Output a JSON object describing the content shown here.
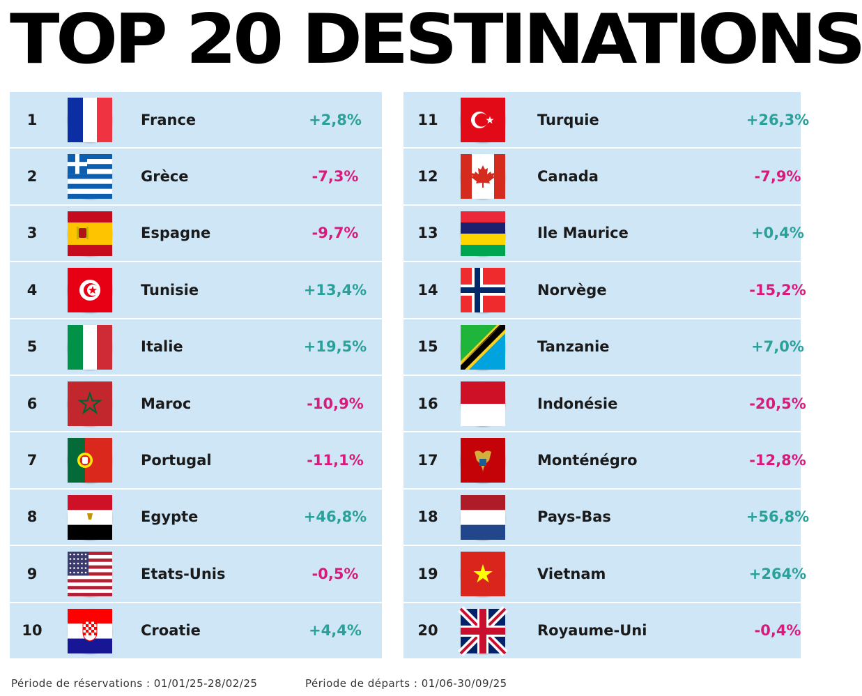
{
  "title": "TOP 20 DESTINATIONS",
  "colors": {
    "positive": "#2aa198",
    "negative": "#d81b7a",
    "row_bg": "#cfe6f7"
  },
  "chart_data": {
    "type": "table",
    "columns": [
      "rank",
      "country",
      "change"
    ],
    "rows": [
      {
        "rank": "1",
        "country": "France",
        "change": "+2,8%",
        "value": 2.8,
        "flag": "flag-france"
      },
      {
        "rank": "2",
        "country": "Grèce",
        "change": "-7,3%",
        "value": -7.3,
        "flag": "flag-greece"
      },
      {
        "rank": "3",
        "country": "Espagne",
        "change": "-9,7%",
        "value": -9.7,
        "flag": "flag-spain"
      },
      {
        "rank": "4",
        "country": "Tunisie",
        "change": "+13,4%",
        "value": 13.4,
        "flag": "flag-tunisia"
      },
      {
        "rank": "5",
        "country": "Italie",
        "change": "+19,5%",
        "value": 19.5,
        "flag": "flag-italy"
      },
      {
        "rank": "6",
        "country": "Maroc",
        "change": "-10,9%",
        "value": -10.9,
        "flag": "flag-morocco"
      },
      {
        "rank": "7",
        "country": "Portugal",
        "change": "-11,1%",
        "value": -11.1,
        "flag": "flag-portugal"
      },
      {
        "rank": "8",
        "country": "Egypte",
        "change": "+46,8%",
        "value": 46.8,
        "flag": "flag-egypt"
      },
      {
        "rank": "9",
        "country": "Etats-Unis",
        "change": "-0,5%",
        "value": -0.5,
        "flag": "flag-usa"
      },
      {
        "rank": "10",
        "country": "Croatie",
        "change": "+4,4%",
        "value": 4.4,
        "flag": "flag-croatia"
      },
      {
        "rank": "11",
        "country": "Turquie",
        "change": "+26,3%",
        "value": 26.3,
        "flag": "flag-turkey"
      },
      {
        "rank": "12",
        "country": "Canada",
        "change": "-7,9%",
        "value": -7.9,
        "flag": "flag-canada"
      },
      {
        "rank": "13",
        "country": "Ile Maurice",
        "change": "+0,4%",
        "value": 0.4,
        "flag": "flag-mauritius"
      },
      {
        "rank": "14",
        "country": "Norvège",
        "change": "-15,2%",
        "value": -15.2,
        "flag": "flag-norway"
      },
      {
        "rank": "15",
        "country": "Tanzanie",
        "change": "+7,0%",
        "value": 7.0,
        "flag": "flag-tanzania"
      },
      {
        "rank": "16",
        "country": "Indonésie",
        "change": "-20,5%",
        "value": -20.5,
        "flag": "flag-indonesia"
      },
      {
        "rank": "17",
        "country": "Monténégro",
        "change": "-12,8%",
        "value": -12.8,
        "flag": "flag-montenegro"
      },
      {
        "rank": "18",
        "country": "Pays-Bas",
        "change": "+56,8%",
        "value": 56.8,
        "flag": "flag-netherlands"
      },
      {
        "rank": "19",
        "country": "Vietnam",
        "change": "+264%",
        "value": 264,
        "flag": "flag-vietnam"
      },
      {
        "rank": "20",
        "country": "Royaume-Uni",
        "change": "-0,4%",
        "value": -0.4,
        "flag": "flag-uk"
      }
    ]
  },
  "footer": {
    "booking_period": "Période de réservations : 01/01/25-28/02/25",
    "departure_period": "Période de départs : 01/06-30/09/25"
  }
}
